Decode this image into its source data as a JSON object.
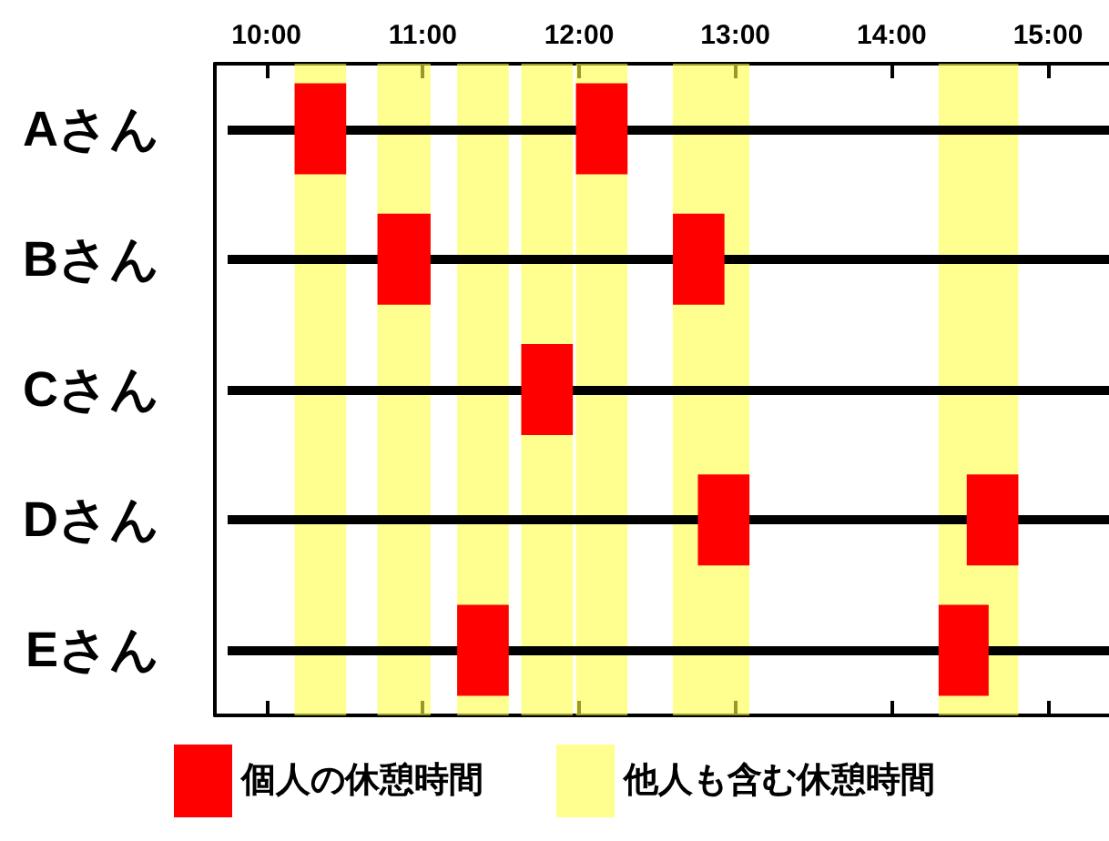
{
  "chart_data": {
    "type": "bar",
    "orientation": "horizontal",
    "categories": [
      "Aさん",
      "Bさん",
      "Cさん",
      "Dさん",
      "Eさん"
    ],
    "series": [
      {
        "name": "個人の休憩時間",
        "color": "#ff0000",
        "base": [
          10.18,
          10.71,
          11.63,
          12.76,
          11.22
        ],
        "values": [
          0.33,
          0.34,
          0.33,
          0.33,
          0.33
        ]
      },
      {
        "color": "#ff0000",
        "base": [
          11.98,
          12.6,
          null,
          14.48,
          14.3
        ],
        "values": [
          0.33,
          0.33,
          null,
          0.33,
          0.32
        ]
      }
    ],
    "bands": [
      {
        "axis": "x",
        "from": 10.18,
        "to": 10.51,
        "color": "#ffff44",
        "label": "他人も含む休憩時間"
      },
      {
        "axis": "x",
        "from": 10.71,
        "to": 11.05,
        "color": "#ffff44"
      },
      {
        "axis": "x",
        "from": 11.22,
        "to": 11.55,
        "color": "#ffff44"
      },
      {
        "axis": "x",
        "from": 11.63,
        "to": 11.96,
        "color": "#ffff44"
      },
      {
        "axis": "x",
        "from": 11.98,
        "to": 12.31,
        "color": "#ffff44"
      },
      {
        "axis": "x",
        "from": 12.6,
        "to": 13.09,
        "color": "#ffff44"
      },
      {
        "axis": "x",
        "from": 14.3,
        "to": 14.81,
        "color": "#ffff44"
      }
    ],
    "xlim": [
      9.67,
      15.39
    ],
    "xticks": [
      {
        "value": 10,
        "label": "10:00"
      },
      {
        "value": 11,
        "label": "11:00"
      },
      {
        "value": 12,
        "label": "12:00"
      },
      {
        "value": 13,
        "label": "13:00"
      },
      {
        "value": 14,
        "label": "14:00"
      },
      {
        "value": 15,
        "label": "15:00"
      }
    ],
    "grid": "y",
    "legend": "bottom"
  }
}
